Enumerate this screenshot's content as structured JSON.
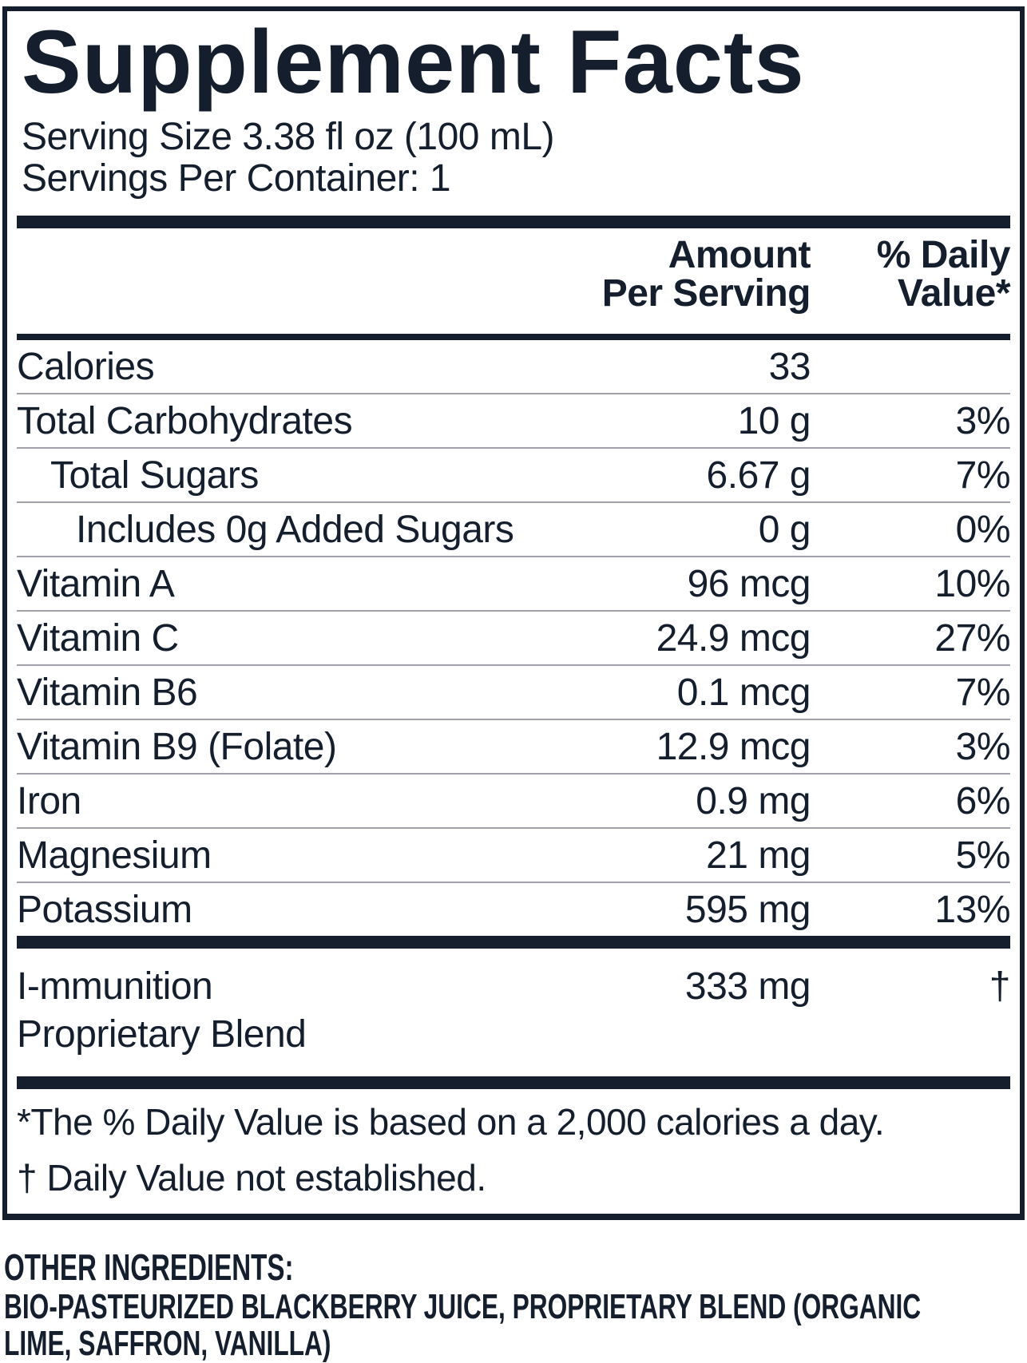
{
  "label": {
    "title": "Supplement Facts",
    "serving_size": "Serving Size 3.38 fl oz (100 mL)",
    "servings_per_container": "Servings Per Container: 1",
    "header": {
      "amount_line1": "Amount",
      "amount_line2": "Per Serving",
      "dv_line1": "% Daily",
      "dv_line2": "Value*"
    },
    "rows": [
      {
        "name": "Calories",
        "amount": "33",
        "dv": "",
        "indent": 0
      },
      {
        "name": "Total Carbohydrates",
        "amount": "10 g",
        "dv": "3%",
        "indent": 0
      },
      {
        "name": "Total Sugars",
        "amount": "6.67 g",
        "dv": "7%",
        "indent": 1
      },
      {
        "name": "Includes 0g Added Sugars",
        "amount": "0 g",
        "dv": "0%",
        "indent": 2
      },
      {
        "name": "Vitamin A",
        "amount": "96 mcg",
        "dv": "10%",
        "indent": 0
      },
      {
        "name": "Vitamin C",
        "amount": "24.9 mcg",
        "dv": "27%",
        "indent": 0
      },
      {
        "name": "Vitamin B6",
        "amount": "0.1 mcg",
        "dv": "7%",
        "indent": 0
      },
      {
        "name": "Vitamin B9 (Folate)",
        "amount": "12.9 mcg",
        "dv": "3%",
        "indent": 0
      },
      {
        "name": "Iron",
        "amount": "0.9 mg",
        "dv": "6%",
        "indent": 0
      },
      {
        "name": "Magnesium",
        "amount": "21 mg",
        "dv": "5%",
        "indent": 0
      },
      {
        "name": "Potassium",
        "amount": "595 mg",
        "dv": "13%",
        "indent": 0
      }
    ],
    "blend": {
      "name_line1": "I-mmunition",
      "name_line2": "Proprietary Blend",
      "amount": "333 mg",
      "dv": "†"
    },
    "footnotes": {
      "daily_value": "*The % Daily Value is based on a 2,000 calories a day.",
      "not_established": "† Daily Value not established."
    }
  },
  "other_ingredients": {
    "heading": "OTHER INGREDIENTS:",
    "text": "BIO-PASTEURIZED BLACKBERRY JUICE, PROPRIETARY BLEND (ORGANIC LIME, SAFFRON, VANILLA)"
  },
  "colors": {
    "ink": "#141e2c",
    "hairline": "#a0a2a7",
    "background": "#ffffff"
  }
}
